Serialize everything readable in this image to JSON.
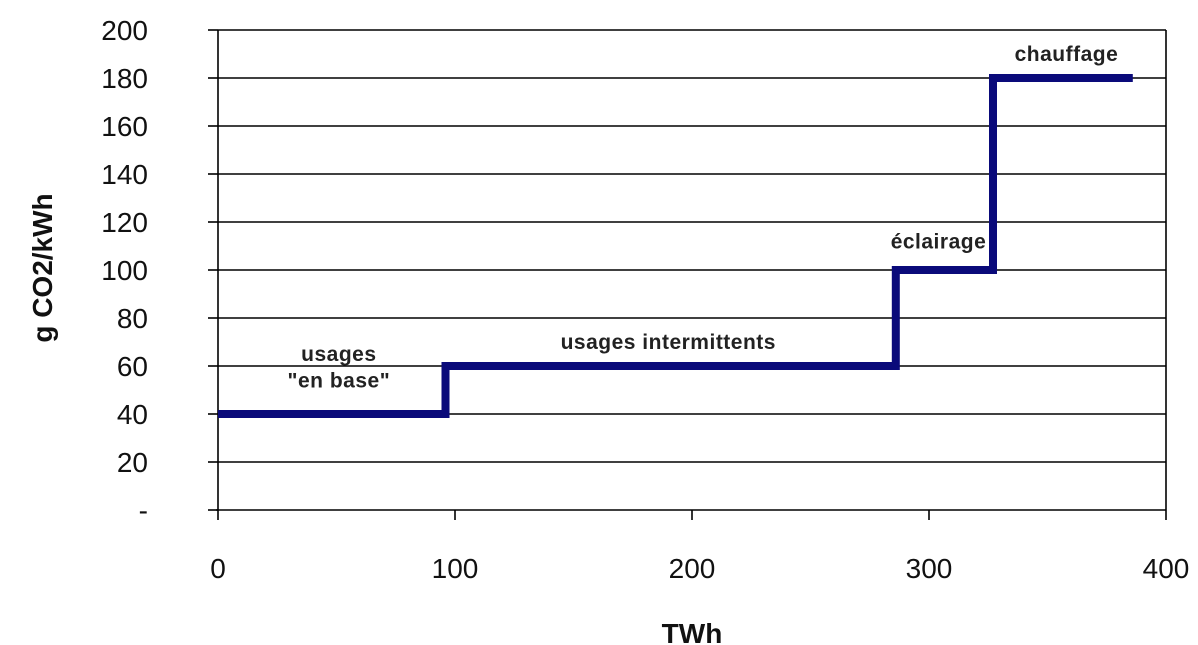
{
  "chart_data": {
    "type": "line",
    "step": true,
    "title": "",
    "xlabel": "TWh",
    "ylabel": "g CO2/kWh",
    "xlim": [
      0,
      400
    ],
    "ylim": [
      0,
      200
    ],
    "x_ticks": [
      {
        "value": 0,
        "label": "0"
      },
      {
        "value": 100,
        "label": "100"
      },
      {
        "value": 200,
        "label": "200"
      },
      {
        "value": 300,
        "label": "300"
      },
      {
        "value": 400,
        "label": "400"
      }
    ],
    "y_ticks": [
      {
        "value": 0,
        "label": "-"
      },
      {
        "value": 20,
        "label": "20"
      },
      {
        "value": 40,
        "label": "40"
      },
      {
        "value": 60,
        "label": "60"
      },
      {
        "value": 80,
        "label": "80"
      },
      {
        "value": 100,
        "label": "100"
      },
      {
        "value": 120,
        "label": "120"
      },
      {
        "value": 140,
        "label": "140"
      },
      {
        "value": 160,
        "label": "160"
      },
      {
        "value": 180,
        "label": "180"
      },
      {
        "value": 200,
        "label": "200"
      }
    ],
    "grid": "horizontal",
    "legend": "none",
    "series": [
      {
        "color": "#0a0a7a",
        "points": [
          {
            "x": 0,
            "y": 40
          },
          {
            "x": 96,
            "y": 40
          },
          {
            "x": 96,
            "y": 60
          },
          {
            "x": 286,
            "y": 60
          },
          {
            "x": 286,
            "y": 100
          },
          {
            "x": 327,
            "y": 100
          },
          {
            "x": 327,
            "y": 180
          },
          {
            "x": 386,
            "y": 180
          }
        ]
      }
    ],
    "annotations": [
      {
        "name": "annotation-usages-base-line1",
        "text": "usages",
        "x": 51,
        "y": 62
      },
      {
        "name": "annotation-usages-base-line2",
        "text": "\"en base\"",
        "x": 51,
        "y": 51
      },
      {
        "name": "annotation-usages-intermittents",
        "text": "usages intermittents",
        "x": 190,
        "y": 67
      },
      {
        "name": "annotation-eclairage",
        "text": "éclairage",
        "x": 304,
        "y": 109
      },
      {
        "name": "annotation-chauffage",
        "text": "chauffage",
        "x": 358,
        "y": 187
      }
    ]
  }
}
